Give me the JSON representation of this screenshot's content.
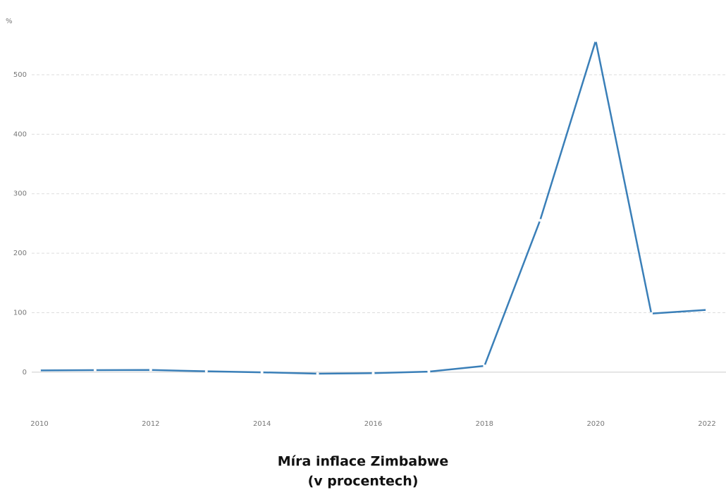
{
  "chart_data": {
    "type": "line",
    "title": "Míra inflace Zimbabwe",
    "subtitle": "(v procentech)",
    "y_unit": "%",
    "x": [
      2010,
      2011,
      2012,
      2013,
      2014,
      2015,
      2016,
      2017,
      2018,
      2019,
      2020,
      2021,
      2022
    ],
    "series": [
      {
        "name": "Míra inflace Zimbabwe",
        "color": "#3a7fb8",
        "values": [
          3.0,
          3.5,
          3.7,
          1.6,
          -0.2,
          -2.4,
          -1.6,
          0.9,
          10.6,
          255.3,
          557.2,
          98.5,
          104.7
        ]
      }
    ],
    "xlim": [
      2010,
      2022
    ],
    "xticks": [
      2010,
      2012,
      2014,
      2016,
      2018,
      2020,
      2022
    ],
    "ylim": [
      -70,
      560
    ],
    "yticks": [
      0,
      100,
      200,
      300,
      400,
      500
    ],
    "grid": true
  }
}
